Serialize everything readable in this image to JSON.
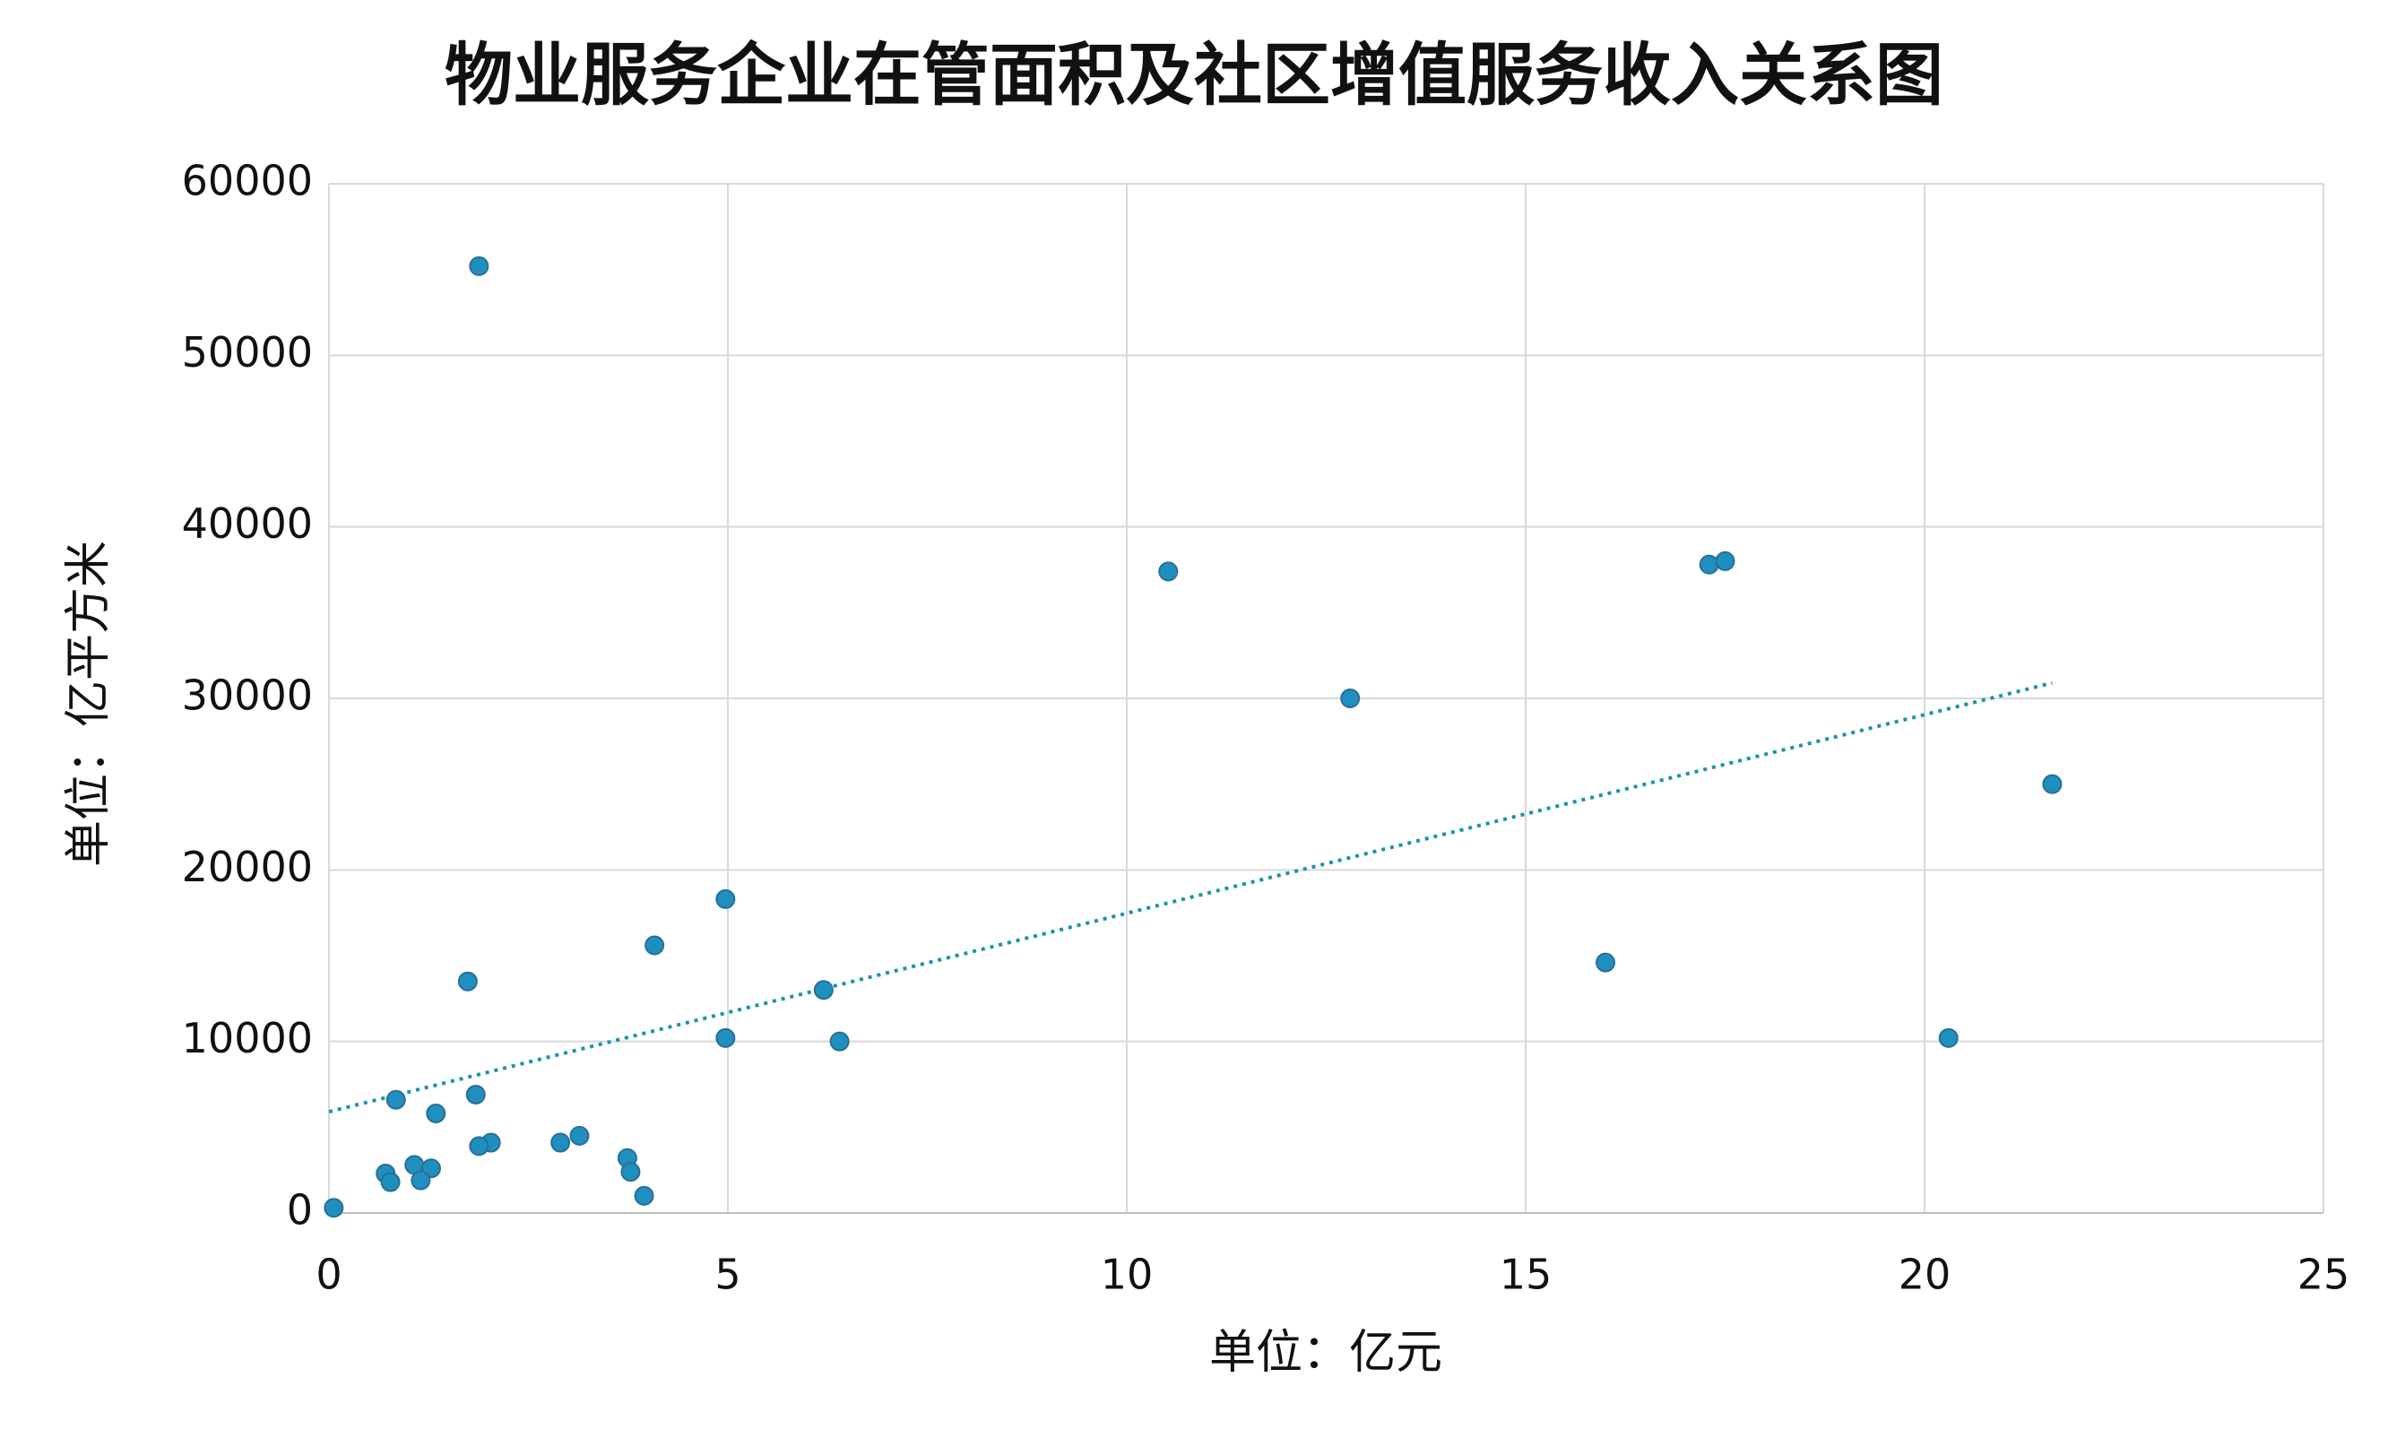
{
  "chart_data": {
    "type": "scatter",
    "title": "物业服务企业在管面积及社区增值服务收入关系图",
    "x_label": "单位：亿元",
    "y_label": "单位：亿平方米",
    "series": [
      {
        "color": "#1f8fbf",
        "x": [
          0.06,
          1.88,
          10.52,
          12.8,
          17.3,
          17.5,
          21.6,
          16.0,
          20.3,
          4.97,
          4.08,
          1.74,
          6.2,
          4.97,
          6.4,
          0.84,
          1.84,
          1.34,
          3.14,
          2.9,
          2.03,
          1.88,
          3.74,
          1.07,
          1.28,
          0.71,
          3.78,
          1.15,
          0.77,
          3.95
        ],
        "values": [
          300,
          55200,
          37400,
          30000,
          37800,
          38000,
          25000,
          14600,
          10200,
          18300,
          15600,
          13500,
          13000,
          10200,
          10000,
          6600,
          6900,
          5800,
          4500,
          4100,
          4100,
          3900,
          3200,
          2800,
          2600,
          2300,
          2400,
          1900,
          1800,
          1000
        ]
      }
    ],
    "trendline": {
      "color": "#1a93b0",
      "x": [
        0,
        21.6
      ],
      "y": [
        5900,
        30900
      ]
    },
    "xlim": [
      0,
      25
    ],
    "xticks": [
      0,
      5,
      10,
      15,
      20,
      25
    ],
    "ylim": [
      0,
      60000
    ],
    "yticks": [
      0,
      10000,
      20000,
      30000,
      40000,
      50000,
      60000
    ],
    "grid": true
  }
}
